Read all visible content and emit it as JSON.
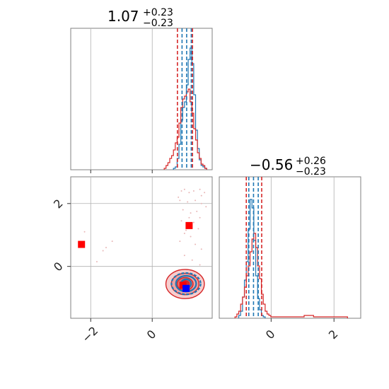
{
  "chart_data": {
    "type": "corner",
    "parameters": 2,
    "series": [
      {
        "color": "#1f77b4"
      },
      {
        "color": "#d62728"
      }
    ],
    "panels": [
      {
        "id": "hist-param-1",
        "type": "histogram",
        "title": {
          "value": "1.07",
          "plus": "+0.23",
          "minus": "−0.23"
        },
        "xlim": [
          -2.65,
          1.95
        ],
        "ylim": [
          0,
          1
        ],
        "grid": true,
        "xticks": [
          -2,
          0
        ],
        "xtick_labels_visible": false,
        "quantile_lines": [
          {
            "x": 0.82,
            "color": "#d62728"
          },
          {
            "x": 0.97,
            "color": "#1f77b4"
          },
          {
            "x": 1.12,
            "color": "#1f77b4"
          },
          {
            "x": 1.27,
            "color": "#1f77b4"
          },
          {
            "x": 1.31,
            "color": "#d62728"
          }
        ],
        "hist_series": [
          {
            "color": "#1f77b4",
            "x": [
              0.72,
              0.78,
              0.84,
              0.9,
              0.96,
              1.02,
              1.08,
              1.14,
              1.2,
              1.26,
              1.32,
              1.38,
              1.44,
              1.5,
              1.56,
              1.62,
              1.68,
              1.74
            ],
            "values": [
              0.01,
              0.02,
              0.08,
              0.18,
              0.35,
              0.44,
              0.48,
              0.6,
              0.78,
              0.86,
              0.75,
              0.53,
              0.28,
              0.15,
              0.07,
              0.03,
              0.02,
              0.01
            ]
          },
          {
            "color": "#d62728",
            "x": [
              0.42,
              0.48,
              0.54,
              0.6,
              0.66,
              0.72,
              0.78,
              0.84,
              0.9,
              0.96,
              1.02,
              1.08,
              1.14,
              1.2,
              1.26,
              1.32,
              1.38,
              1.44,
              1.5,
              1.56,
              1.62,
              1.68,
              1.74
            ],
            "values": [
              0.01,
              0.03,
              0.05,
              0.08,
              0.1,
              0.14,
              0.19,
              0.23,
              0.33,
              0.44,
              0.5,
              0.52,
              0.55,
              0.57,
              0.48,
              0.4,
              0.29,
              0.21,
              0.12,
              0.08,
              0.04,
              0.03,
              0.01
            ]
          }
        ]
      },
      {
        "id": "scatter-2d",
        "type": "2d-density",
        "xlim": [
          -2.65,
          1.95
        ],
        "ylim": [
          -1.65,
          2.85
        ],
        "grid": true,
        "xticks": [
          -2,
          0
        ],
        "yticks": [
          0,
          2
        ],
        "xtick_labels": [
          "−2",
          "0"
        ],
        "ytick_labels": [
          "0",
          "2"
        ],
        "truth_markers": [
          {
            "x": -2.3,
            "y": 0.7,
            "color": "#ff0000"
          },
          {
            "x": 1.2,
            "y": 1.3,
            "color": "#ff0000"
          },
          {
            "x": 1.0,
            "y": -0.6,
            "color": "#ff0000"
          },
          {
            "x": 1.1,
            "y": -0.7,
            "color": "#0000ff"
          }
        ],
        "red_contour": {
          "center": [
            1.07,
            -0.56
          ],
          "radii": [
            [
              1.25,
              0.93
            ],
            [
              0.9,
              0.68
            ],
            [
              0.52,
              0.41
            ],
            [
              0.28,
              0.22
            ]
          ]
        },
        "blue_contour": {
          "center": [
            1.1,
            -0.55
          ],
          "radii": [
            [
              0.95,
              0.68
            ],
            [
              0.66,
              0.5
            ],
            [
              0.33,
              0.28
            ]
          ]
        },
        "scatter_points": [
          [
            0.95,
            2.4
          ],
          [
            1.05,
            2.45
          ],
          [
            1.2,
            2.35
          ],
          [
            1.35,
            2.4
          ],
          [
            1.55,
            2.45
          ],
          [
            1.7,
            2.35
          ],
          [
            0.9,
            2.1
          ],
          [
            1.15,
            2.05
          ],
          [
            1.4,
            2.1
          ],
          [
            1.6,
            2.0
          ],
          [
            1.0,
            1.8
          ],
          [
            1.25,
            1.7
          ],
          [
            1.45,
            1.75
          ],
          [
            1.55,
            1.55
          ],
          [
            0.95,
            1.45
          ],
          [
            1.35,
            1.4
          ],
          [
            1.1,
            1.15
          ],
          [
            1.5,
            1.2
          ],
          [
            1.25,
            0.95
          ],
          [
            0.9,
            0.8
          ],
          [
            1.4,
            0.7
          ],
          [
            1.6,
            0.55
          ],
          [
            1.05,
            0.35
          ],
          [
            1.3,
            0.2
          ],
          [
            1.55,
            0.05
          ],
          [
            -1.5,
            0.6
          ],
          [
            -1.3,
            0.8
          ],
          [
            -2.2,
            1.1
          ],
          [
            -1.6,
            0.5
          ],
          [
            -1.8,
            0.15
          ],
          [
            0.85,
            2.2
          ],
          [
            1.6,
            2.25
          ],
          [
            1.75,
            1.9
          ],
          [
            1.2,
            1.55
          ],
          [
            1.05,
            1.05
          ]
        ]
      },
      {
        "id": "hist-param-2",
        "type": "histogram",
        "title": {
          "value": "−0.56",
          "plus": "+0.26",
          "minus": "−0.23"
        },
        "xlim": [
          -1.65,
          2.85
        ],
        "ylim": [
          0,
          1
        ],
        "grid": true,
        "xticks": [
          0,
          2
        ],
        "xtick_labels": [
          "0",
          "2"
        ],
        "quantile_lines": [
          {
            "x": -0.79,
            "color": "#d62728"
          },
          {
            "x": -0.71,
            "color": "#1f77b4"
          },
          {
            "x": -0.56,
            "color": "#1f77b4"
          },
          {
            "x": -0.41,
            "color": "#1f77b4"
          },
          {
            "x": -0.3,
            "color": "#d62728"
          }
        ],
        "hist_series": [
          {
            "color": "#1f77b4",
            "x": [
              -1.0,
              -0.94,
              -0.88,
              -0.82,
              -0.76,
              -0.7,
              -0.64,
              -0.58,
              -0.52,
              -0.46,
              -0.4,
              -0.34,
              -0.28,
              -0.22
            ],
            "values": [
              0.02,
              0.05,
              0.15,
              0.27,
              0.4,
              0.63,
              0.84,
              0.78,
              0.55,
              0.3,
              0.14,
              0.06,
              0.02,
              0.01
            ]
          },
          {
            "color": "#d62728",
            "x": [
              -1.12,
              -1.06,
              -1.0,
              -0.94,
              -0.88,
              -0.82,
              -0.76,
              -0.7,
              -0.64,
              -0.58,
              -0.52,
              -0.46,
              -0.4,
              -0.34,
              -0.28,
              -0.22,
              -0.16,
              -0.1,
              -0.04,
              0.02,
              0.1,
              0.3,
              0.6,
              0.9,
              1.2,
              1.5,
              1.8,
              2.1,
              2.4
            ],
            "values": [
              0.01,
              0.03,
              0.05,
              0.1,
              0.15,
              0.22,
              0.3,
              0.37,
              0.47,
              0.56,
              0.6,
              0.5,
              0.37,
              0.28,
              0.17,
              0.1,
              0.05,
              0.03,
              0.02,
              0.01,
              0.01,
              0.01,
              0.01,
              0.01,
              0.02,
              0.01,
              0.01,
              0.01,
              0.01
            ]
          }
        ]
      }
    ]
  }
}
